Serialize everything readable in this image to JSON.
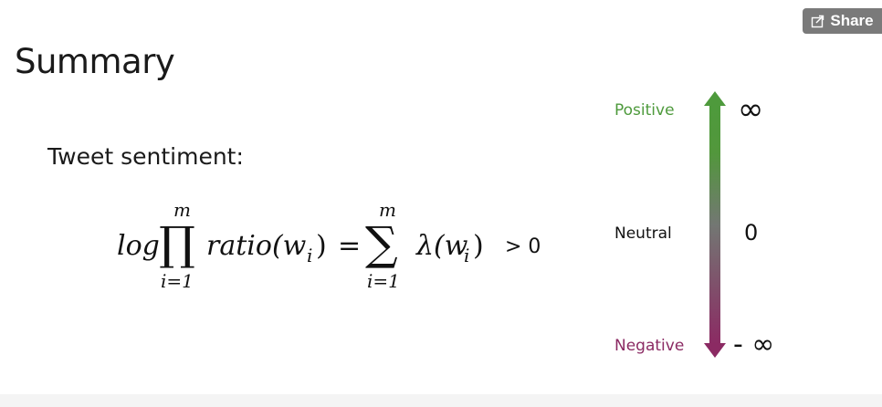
{
  "share": {
    "label": "Share",
    "icon": "share-icon"
  },
  "slide": {
    "title": "Summary",
    "tweet_label": "Tweet sentiment:",
    "formula": {
      "log": "log",
      "prod_symbol": "∏",
      "prod_upper": "m",
      "prod_lower": "i=1",
      "ratio_term": "ratio(w",
      "ratio_sub": "i",
      "ratio_close": ")",
      "equals": "=",
      "sum_symbol": "∑",
      "sum_upper": "m",
      "sum_lower": "i=1",
      "lambda_term": "λ(w",
      "lambda_sub": "i",
      "lambda_close": ")",
      "comparison": "> 0"
    }
  },
  "scale": {
    "positive_label": "Positive",
    "neutral_label": "Neutral",
    "negative_label": "Negative",
    "positive_value": "∞",
    "neutral_value": "0",
    "negative_value": "- ∞",
    "positive_color": "#4e9a3c",
    "neutral_color": "#111111",
    "negative_color": "#8b2a63"
  }
}
